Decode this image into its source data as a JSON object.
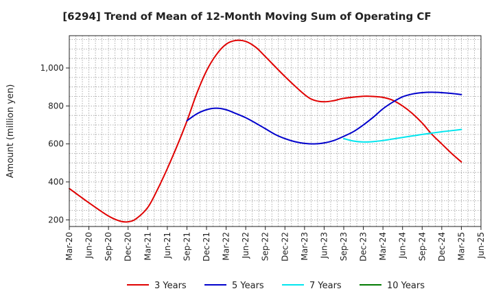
{
  "chart_data": {
    "type": "line",
    "title": "[6294]  Trend of Mean of 12-Month Moving Sum of Operating CF",
    "xlabel": "",
    "ylabel": "Amount (million yen)",
    "ylim": [
      165,
      1170
    ],
    "yticks": [
      200,
      400,
      600,
      800,
      1000
    ],
    "ytick_labels": [
      "200",
      "400",
      "600",
      "800",
      "1,000"
    ],
    "x_ticks": [
      "Mar-20",
      "Jun-20",
      "Sep-20",
      "Dec-20",
      "Mar-21",
      "Jun-21",
      "Sep-21",
      "Dec-21",
      "Mar-22",
      "Jun-22",
      "Sep-22",
      "Dec-22",
      "Mar-23",
      "Jun-23",
      "Sep-23",
      "Dec-23",
      "Mar-24",
      "Jun-24",
      "Sep-24",
      "Dec-24",
      "Mar-25",
      "Jun-25"
    ],
    "grid": true,
    "legend_position": "bottom",
    "series": [
      {
        "name": "3 Years",
        "color": "#e00000",
        "points": [
          [
            0,
            365
          ],
          [
            1,
            290
          ],
          [
            2,
            220
          ],
          [
            2.6,
            193
          ],
          [
            3,
            190
          ],
          [
            3.4,
            205
          ],
          [
            4,
            265
          ],
          [
            4.5,
            360
          ],
          [
            5,
            470
          ],
          [
            5.5,
            590
          ],
          [
            6,
            720
          ],
          [
            6.5,
            865
          ],
          [
            7,
            985
          ],
          [
            7.5,
            1070
          ],
          [
            8,
            1125
          ],
          [
            8.5,
            1145
          ],
          [
            9,
            1140
          ],
          [
            9.5,
            1110
          ],
          [
            10,
            1060
          ],
          [
            11,
            955
          ],
          [
            12,
            860
          ],
          [
            12.5,
            830
          ],
          [
            13,
            822
          ],
          [
            13.5,
            828
          ],
          [
            14,
            840
          ],
          [
            15,
            851
          ],
          [
            15.5,
            850
          ],
          [
            16,
            845
          ],
          [
            16.5,
            830
          ],
          [
            17,
            800
          ],
          [
            17.5,
            760
          ],
          [
            18,
            710
          ],
          [
            18.5,
            650
          ],
          [
            19,
            600
          ],
          [
            19.5,
            550
          ],
          [
            20,
            505
          ]
        ]
      },
      {
        "name": "5 Years",
        "color": "#0000cc",
        "points": [
          [
            6,
            722
          ],
          [
            6.5,
            758
          ],
          [
            7,
            780
          ],
          [
            7.5,
            788
          ],
          [
            8,
            780
          ],
          [
            8.5,
            760
          ],
          [
            9,
            738
          ],
          [
            9.5,
            710
          ],
          [
            10,
            680
          ],
          [
            10.5,
            650
          ],
          [
            11,
            628
          ],
          [
            11.5,
            612
          ],
          [
            12,
            603
          ],
          [
            12.5,
            600
          ],
          [
            13,
            605
          ],
          [
            13.5,
            618
          ],
          [
            14,
            640
          ],
          [
            14.5,
            665
          ],
          [
            15,
            700
          ],
          [
            15.5,
            740
          ],
          [
            16,
            785
          ],
          [
            16.5,
            820
          ],
          [
            17,
            848
          ],
          [
            17.5,
            863
          ],
          [
            18,
            870
          ],
          [
            18.5,
            872
          ],
          [
            19,
            870
          ],
          [
            19.5,
            866
          ],
          [
            20,
            860
          ]
        ]
      },
      {
        "name": "7 Years",
        "color": "#00e5ee",
        "points": [
          [
            14,
            628
          ],
          [
            14.5,
            615
          ],
          [
            15,
            610
          ],
          [
            15.5,
            612
          ],
          [
            16,
            618
          ],
          [
            16.5,
            626
          ],
          [
            17,
            634
          ],
          [
            17.5,
            642
          ],
          [
            18,
            650
          ],
          [
            18.5,
            657
          ],
          [
            19,
            664
          ],
          [
            19.5,
            670
          ],
          [
            20,
            676
          ]
        ]
      },
      {
        "name": "10 Years",
        "color": "#007a00",
        "points": []
      }
    ]
  }
}
